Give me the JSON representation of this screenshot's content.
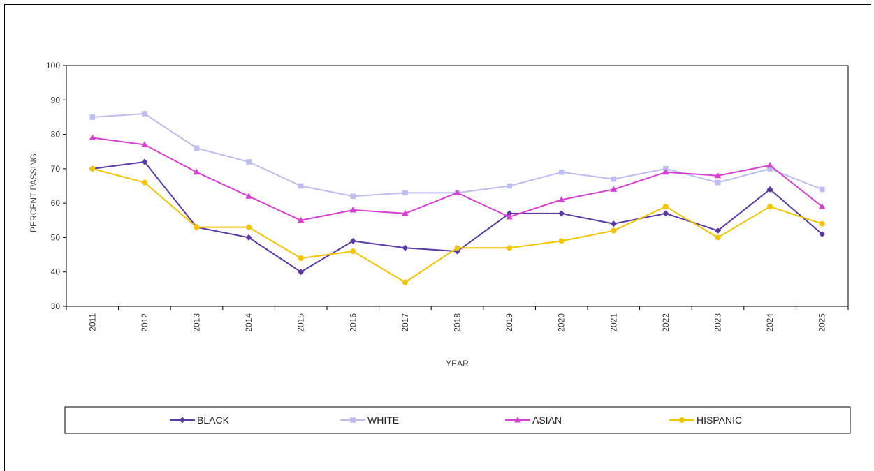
{
  "chart_data": {
    "type": "line",
    "title": "",
    "xlabel": "YEAR",
    "ylabel": "PERCENT PASSING",
    "ylim": [
      30,
      100
    ],
    "yticks": [
      30,
      40,
      50,
      60,
      70,
      80,
      90,
      100
    ],
    "grid": false,
    "legend_position": "bottom",
    "categories": [
      "2011",
      "2012",
      "2013",
      "2014",
      "2015",
      "2016",
      "2017",
      "2018",
      "2019",
      "2020",
      "2021",
      "2022",
      "2023",
      "2024",
      "2025"
    ],
    "series": [
      {
        "name": "BLACK",
        "color": "#5b3aa6",
        "marker": "diamond",
        "values": [
          70,
          72,
          53,
          50,
          40,
          49,
          47,
          46,
          57,
          57,
          54,
          57,
          52,
          64,
          51
        ]
      },
      {
        "name": "WHITE",
        "color": "#bdbdf2",
        "marker": "square",
        "values": [
          85,
          86,
          76,
          72,
          65,
          62,
          63,
          63,
          65,
          69,
          67,
          70,
          66,
          70,
          64
        ]
      },
      {
        "name": "ASIAN",
        "color": "#d63fd1",
        "marker": "triangle",
        "values": [
          79,
          77,
          69,
          62,
          55,
          58,
          57,
          63,
          56,
          61,
          64,
          69,
          68,
          71,
          59
        ]
      },
      {
        "name": "HISPANIC",
        "color": "#f5c400",
        "marker": "circle",
        "values": [
          70,
          66,
          53,
          53,
          44,
          46,
          37,
          47,
          47,
          49,
          52,
          59,
          50,
          59,
          54
        ]
      }
    ]
  }
}
